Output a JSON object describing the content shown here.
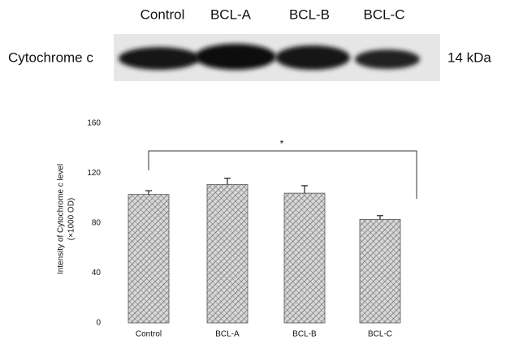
{
  "blot": {
    "lanes": [
      "Control",
      "BCL-A",
      "BCL-B",
      "BCL-C"
    ],
    "protein": "Cytochrome c",
    "size": "14 kDa"
  },
  "chart_data": {
    "type": "bar",
    "categories": [
      "Control",
      "BCL-A",
      "BCL-B",
      "BCL-C"
    ],
    "values": [
      103,
      111,
      104,
      83
    ],
    "errors": [
      3,
      5,
      6,
      3
    ],
    "y_label": [
      "Intensity of Cytochrome c level",
      "(×1000 OD)"
    ],
    "ylim": [
      0,
      160
    ],
    "yticks": [
      0,
      40,
      80,
      120,
      160
    ],
    "annotation": "*",
    "color": "#888"
  }
}
